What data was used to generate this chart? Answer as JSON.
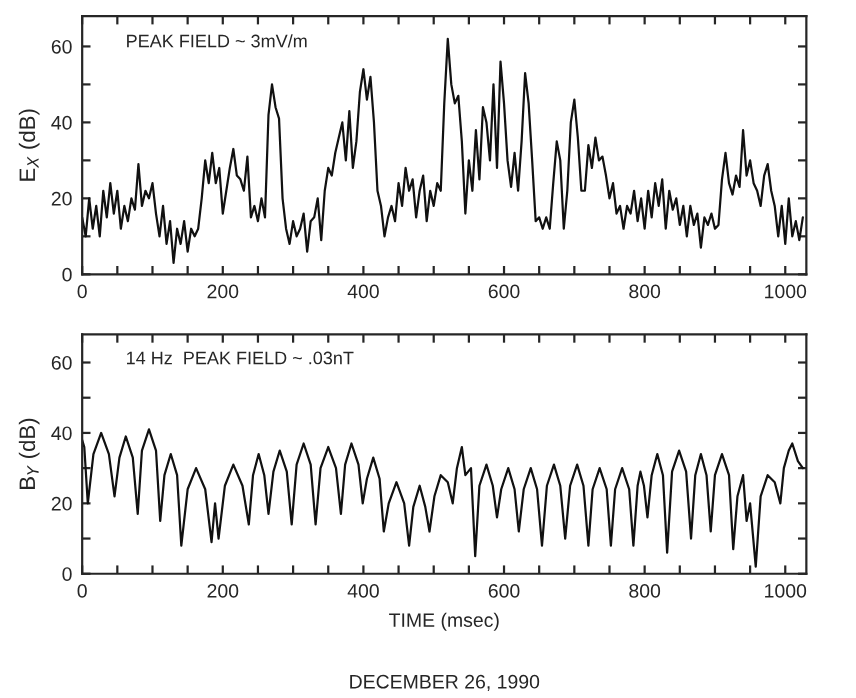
{
  "chart_data": [
    {
      "type": "line",
      "ylabel": "E$_{X}$ (dB)",
      "annotations": [
        "PEAK FIELD ~ 3mV/m"
      ],
      "xlim": [
        0,
        1030
      ],
      "ylim": [
        0,
        68
      ],
      "xticks": [
        0,
        {
          "value": 50,
          "label": null
        },
        {
          "value": 100,
          "label": null
        },
        {
          "value": 150,
          "label": null
        },
        200,
        {
          "value": 250,
          "label": null
        },
        {
          "value": 300,
          "label": null
        },
        {
          "value": 350,
          "label": null
        },
        400,
        {
          "value": 450,
          "label": null
        },
        {
          "value": 500,
          "label": null
        },
        {
          "value": 550,
          "label": null
        },
        600,
        {
          "value": 650,
          "label": null
        },
        {
          "value": 700,
          "label": null
        },
        {
          "value": 750,
          "label": null
        },
        800,
        {
          "value": 850,
          "label": null
        },
        {
          "value": 900,
          "label": null
        },
        {
          "value": 950,
          "label": null
        },
        1000
      ],
      "yticks": [
        0,
        {
          "value": 10,
          "label": null
        },
        20,
        {
          "value": 30,
          "label": null
        },
        40,
        {
          "value": 50,
          "label": null
        },
        60
      ],
      "grid": false,
      "legend": false,
      "marker": "none",
      "line_style": "solid",
      "series": [
        {
          "color": "#111111",
          "x": [
            0,
            5,
            10,
            15,
            20,
            25,
            30,
            35,
            40,
            45,
            50,
            55,
            60,
            65,
            70,
            75,
            80,
            85,
            90,
            95,
            100,
            105,
            110,
            115,
            120,
            125,
            130,
            135,
            140,
            145,
            150,
            155,
            160,
            165,
            170,
            175,
            180,
            185,
            190,
            195,
            200,
            205,
            210,
            215,
            220,
            225,
            230,
            235,
            240,
            245,
            250,
            255,
            260,
            265,
            270,
            275,
            280,
            285,
            290,
            295,
            300,
            305,
            310,
            315,
            320,
            325,
            330,
            335,
            340,
            345,
            350,
            355,
            360,
            365,
            370,
            375,
            380,
            385,
            390,
            395,
            400,
            405,
            410,
            415,
            420,
            425,
            430,
            435,
            440,
            445,
            450,
            455,
            460,
            465,
            470,
            475,
            480,
            485,
            490,
            495,
            500,
            505,
            510,
            515,
            520,
            525,
            530,
            535,
            540,
            545,
            550,
            555,
            560,
            565,
            570,
            575,
            580,
            585,
            590,
            595,
            600,
            605,
            610,
            615,
            620,
            625,
            630,
            635,
            640,
            645,
            650,
            655,
            660,
            665,
            670,
            675,
            680,
            685,
            690,
            695,
            700,
            705,
            710,
            715,
            720,
            725,
            730,
            735,
            740,
            745,
            750,
            755,
            760,
            765,
            770,
            775,
            780,
            785,
            790,
            795,
            800,
            805,
            810,
            815,
            820,
            825,
            830,
            835,
            840,
            845,
            850,
            855,
            860,
            865,
            870,
            875,
            880,
            885,
            890,
            895,
            900,
            905,
            910,
            915,
            920,
            925,
            930,
            935,
            940,
            945,
            950,
            955,
            960,
            965,
            970,
            975,
            980,
            985,
            990,
            995,
            1000,
            1005,
            1010,
            1015,
            1020,
            1025
          ],
          "values": [
            15,
            10,
            20,
            12,
            18,
            10,
            22,
            15,
            24,
            16,
            22,
            12,
            18,
            14,
            20,
            17,
            29,
            18,
            22,
            20,
            24,
            16,
            10,
            18,
            8,
            14,
            3,
            12,
            8,
            14,
            6,
            12,
            10,
            12,
            20,
            30,
            24,
            32,
            24,
            28,
            16,
            22,
            28,
            33,
            26,
            25,
            22,
            31,
            15,
            18,
            14,
            20,
            15,
            42,
            50,
            44,
            41,
            20,
            12,
            8,
            14,
            10,
            12,
            16,
            6,
            14,
            15,
            20,
            9,
            22,
            28,
            26,
            32,
            36,
            40,
            30,
            43,
            28,
            35,
            48,
            54,
            46,
            52,
            40,
            22,
            18,
            10,
            15,
            18,
            14,
            24,
            18,
            28,
            22,
            25,
            15,
            22,
            26,
            14,
            22,
            18,
            24,
            22,
            45,
            62,
            50,
            45,
            47,
            35,
            16,
            30,
            22,
            38,
            25,
            44,
            40,
            30,
            50,
            28,
            56,
            45,
            30,
            23,
            32,
            22,
            35,
            53,
            45,
            30,
            14,
            15,
            12,
            15,
            12,
            24,
            35,
            30,
            12,
            22,
            40,
            46,
            36,
            22,
            22,
            34,
            28,
            36,
            30,
            31,
            26,
            20,
            24,
            16,
            18,
            12,
            18,
            16,
            22,
            14,
            20,
            12,
            22,
            15,
            24,
            18,
            25,
            12,
            22,
            17,
            20,
            13,
            18,
            10,
            18,
            13,
            16,
            7,
            15,
            13,
            16,
            12,
            13,
            25,
            32,
            24,
            21,
            26,
            23,
            38,
            26,
            30,
            24,
            22,
            18,
            26,
            29,
            22,
            18,
            10,
            18,
            8,
            20,
            10,
            14,
            9,
            15
          ]
        }
      ]
    },
    {
      "type": "line",
      "ylabel": "B$_{Y}$ (dB)",
      "xlabel": "TIME (msec)",
      "annotations": [
        "14 Hz  PEAK FIELD ~ .03nT",
        "DECEMBER 26, 1990"
      ],
      "xlim": [
        0,
        1030
      ],
      "ylim": [
        0,
        68
      ],
      "xticks": [
        0,
        {
          "value": 50,
          "label": null
        },
        {
          "value": 100,
          "label": null
        },
        {
          "value": 150,
          "label": null
        },
        200,
        {
          "value": 250,
          "label": null
        },
        {
          "value": 300,
          "label": null
        },
        {
          "value": 350,
          "label": null
        },
        400,
        {
          "value": 450,
          "label": null
        },
        {
          "value": 500,
          "label": null
        },
        {
          "value": 550,
          "label": null
        },
        600,
        {
          "value": 650,
          "label": null
        },
        {
          "value": 700,
          "label": null
        },
        {
          "value": 750,
          "label": null
        },
        800,
        {
          "value": 850,
          "label": null
        },
        {
          "value": 900,
          "label": null
        },
        {
          "value": 950,
          "label": null
        },
        1000
      ],
      "yticks": [
        0,
        {
          "value": 10,
          "label": null
        },
        20,
        {
          "value": 30,
          "label": null
        },
        40,
        {
          "value": 50,
          "label": null
        },
        60
      ],
      "grid": false,
      "legend": false,
      "marker": "none",
      "line_style": "solid",
      "series": [
        {
          "color": "#111111",
          "x": [
            0,
            3,
            8,
            16,
            27,
            38,
            46,
            53,
            62,
            72,
            79,
            85,
            95,
            105,
            111,
            117,
            126,
            135,
            141,
            150,
            162,
            175,
            184,
            189,
            194,
            203,
            215,
            228,
            237,
            243,
            251,
            259,
            265,
            272,
            281,
            291,
            298,
            305,
            315,
            325,
            332,
            339,
            350,
            361,
            368,
            374,
            383,
            393,
            399,
            405,
            414,
            423,
            429,
            436,
            447,
            458,
            465,
            471,
            480,
            488,
            494,
            501,
            510,
            520,
            527,
            533,
            540,
            545,
            553,
            559,
            565,
            575,
            584,
            590,
            596,
            606,
            615,
            621,
            628,
            638,
            647,
            654,
            661,
            671,
            680,
            687,
            694,
            704,
            713,
            720,
            726,
            736,
            746,
            752,
            758,
            768,
            778,
            784,
            790,
            794,
            799,
            804,
            810,
            818,
            826,
            832,
            839,
            849,
            859,
            866,
            872,
            880,
            888,
            894,
            900,
            910,
            920,
            926,
            932,
            940,
            945,
            950,
            958,
            965,
            975,
            985,
            993,
            998,
            1005,
            1010,
            1018,
            1025
          ],
          "values": [
            38,
            36,
            20,
            34,
            40,
            34,
            22,
            33,
            39,
            33,
            17,
            35,
            41,
            35,
            15,
            28,
            34,
            28,
            8,
            24,
            30,
            24,
            9,
            20,
            10,
            25,
            31,
            25,
            14,
            28,
            34,
            28,
            17,
            29,
            35,
            29,
            14,
            31,
            37,
            31,
            14,
            30,
            36,
            30,
            17,
            31,
            37,
            31,
            20,
            27,
            33,
            27,
            12,
            20,
            26,
            20,
            8,
            19,
            25,
            19,
            12,
            22,
            28,
            26,
            20,
            30,
            36,
            28,
            30,
            5,
            25,
            31,
            25,
            16,
            24,
            30,
            24,
            12,
            24,
            30,
            24,
            8,
            25,
            31,
            25,
            10,
            25,
            31,
            25,
            8,
            24,
            30,
            24,
            8,
            24,
            30,
            24,
            8,
            25,
            29,
            25,
            16,
            28,
            34,
            28,
            6,
            29,
            35,
            29,
            10,
            28,
            34,
            28,
            12,
            28,
            34,
            28,
            7,
            22,
            28,
            15,
            20,
            2,
            22,
            28,
            26,
            20,
            30,
            35,
            37,
            32,
            30
          ]
        }
      ]
    }
  ]
}
